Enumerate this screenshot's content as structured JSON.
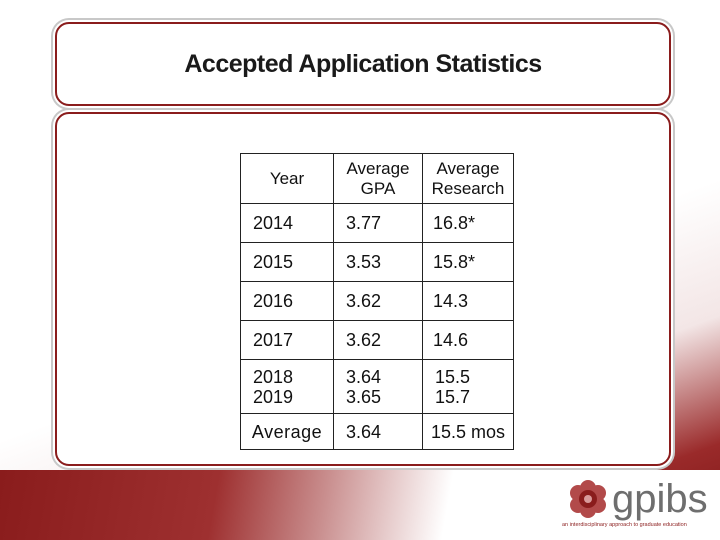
{
  "slide": {
    "title": "Accepted Application Statistics"
  },
  "table": {
    "headers": {
      "year": "Year",
      "gpa": [
        "Average",
        "GPA"
      ],
      "research": [
        "Average",
        "Research"
      ]
    },
    "rows": [
      {
        "year": "2014",
        "gpa": "3.77",
        "research": "16.8*"
      },
      {
        "year": "2015",
        "gpa": "3.53",
        "research": "15.8*"
      },
      {
        "year": "2016",
        "gpa": "3.62",
        "research": "14.3"
      },
      {
        "year": "2017",
        "gpa": "3.62",
        "research": "14.6"
      }
    ],
    "combined_row": {
      "years": [
        "2018",
        "2019"
      ],
      "gpa": [
        "3.64",
        "3.65"
      ],
      "research": [
        "15.5",
        "15.7"
      ]
    },
    "average_row": {
      "label": "Average",
      "gpa": "3.64",
      "research": "15.5 mos"
    }
  },
  "logo": {
    "name": "gpibs",
    "tagline": "an interdisciplinary approach to graduate education",
    "icon": "flower-logo-icon"
  },
  "colors": {
    "accent": "#8a1c1c",
    "text": "#111111"
  }
}
